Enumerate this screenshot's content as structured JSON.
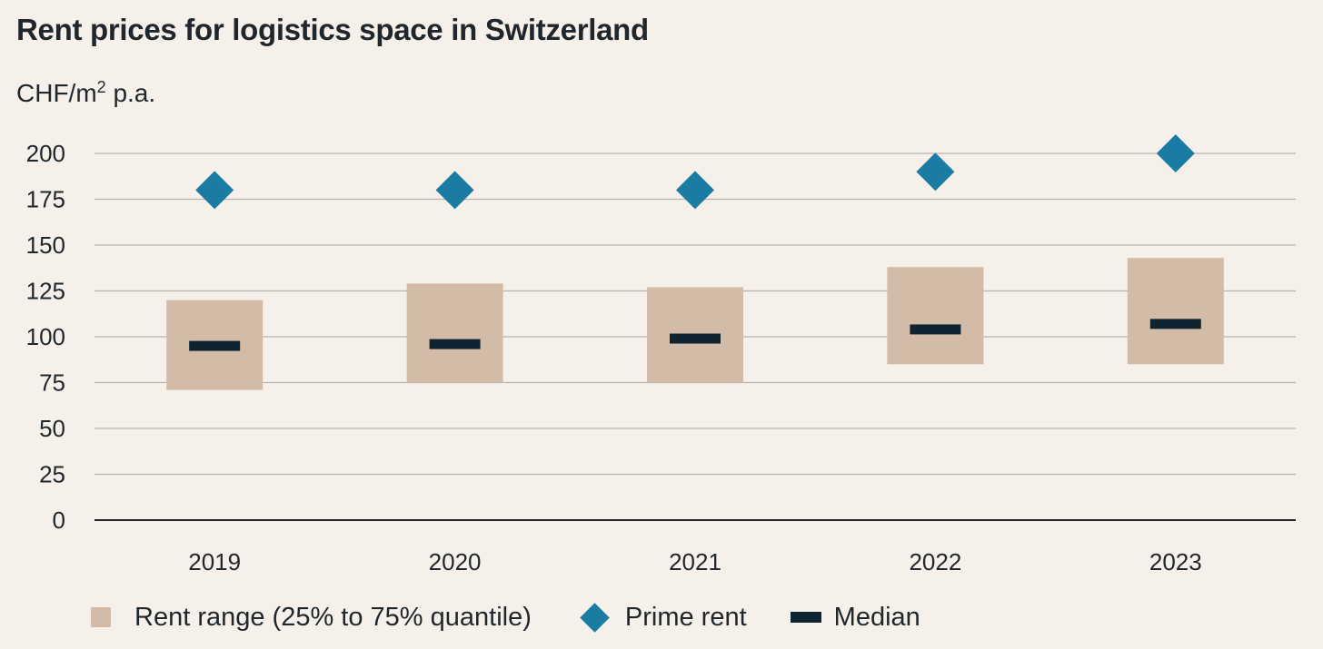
{
  "chart_data": {
    "type": "range-bar",
    "title": "Rent prices for logistics space in Switzerland",
    "unit_label": {
      "prefix": "CHF/m",
      "sup": "2",
      "suffix": " p.a."
    },
    "categories": [
      "2019",
      "2020",
      "2021",
      "2022",
      "2023"
    ],
    "y_ticks": [
      0,
      25,
      50,
      75,
      100,
      125,
      150,
      175,
      200
    ],
    "ylim": [
      0,
      200
    ],
    "grid": true,
    "legend_position": "bottom-left",
    "series": [
      {
        "name": "Rent range (25% to 75% quantile)",
        "kind": "range",
        "color": "#d2bca8",
        "low": [
          71,
          75,
          75,
          85,
          85
        ],
        "high": [
          120,
          129,
          127,
          138,
          143
        ]
      },
      {
        "name": "Prime rent",
        "kind": "marker-diamond",
        "color": "#1a7ba3",
        "values": [
          180,
          180,
          180,
          190,
          200
        ]
      },
      {
        "name": "Median",
        "kind": "marker-dash",
        "color": "#0f2430",
        "values": [
          95,
          96,
          99,
          104,
          107
        ]
      }
    ]
  },
  "colors": {
    "background": "#f6f0ea",
    "gridline": "#b8b3ae",
    "axis": "#1f262c"
  }
}
